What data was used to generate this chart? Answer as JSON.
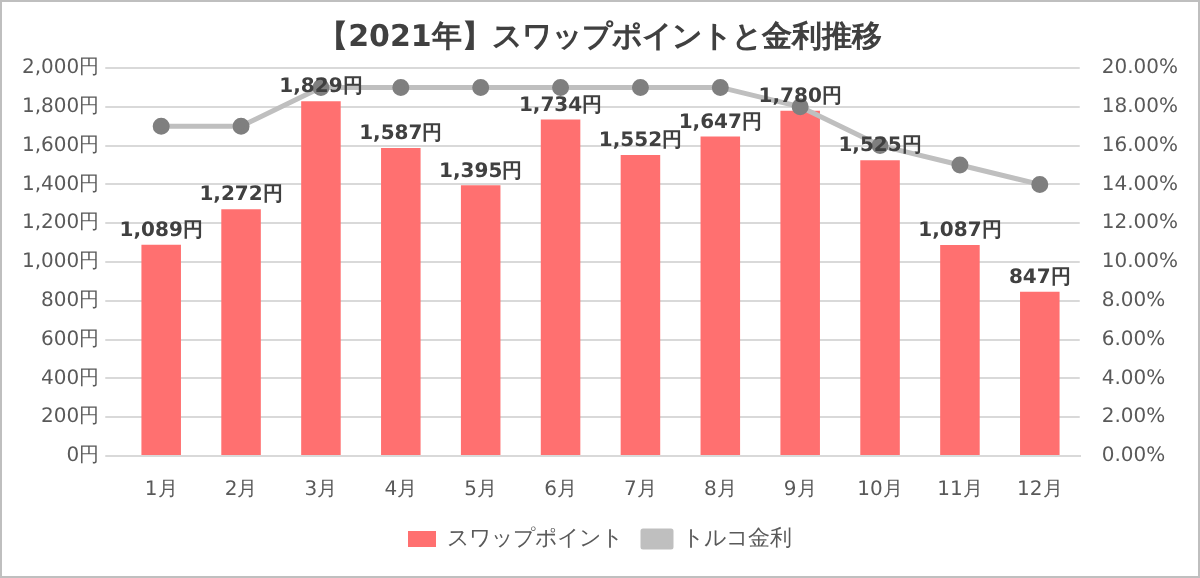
{
  "chart_data": {
    "type": "bar",
    "title": "【2021年】スワップポイントと金利推移",
    "categories": [
      "1月",
      "2月",
      "3月",
      "4月",
      "5月",
      "6月",
      "7月",
      "8月",
      "9月",
      "10月",
      "11月",
      "12月"
    ],
    "series": [
      {
        "name": "スワップポイント",
        "color": "#ff7070",
        "values": [
          1089,
          1272,
          1829,
          1587,
          1395,
          1734,
          1552,
          1647,
          1780,
          1525,
          1087,
          847
        ],
        "value_labels": [
          "1,089円",
          "1,272円",
          "1,829円",
          "1,587円",
          "1,395円",
          "1,734円",
          "1,552円",
          "1,647円",
          "1,780円",
          "1,525円",
          "1,087円",
          "847円"
        ]
      },
      {
        "name": "トルコ金利",
        "type": "line",
        "axis": "y2",
        "color": "#bfbfbf",
        "marker": "circle",
        "values": [
          17,
          17,
          19,
          19,
          19,
          19,
          19,
          19,
          18,
          16,
          15,
          14
        ]
      }
    ],
    "ylim": [
      0,
      2000
    ],
    "yticks": [
      {
        "value": 0,
        "label": "0円"
      },
      {
        "value": 200,
        "label": "200円"
      },
      {
        "value": 400,
        "label": "400円"
      },
      {
        "value": 600,
        "label": "600円"
      },
      {
        "value": 800,
        "label": "800円"
      },
      {
        "value": 1000,
        "label": "1,000円"
      },
      {
        "value": 1200,
        "label": "1,200円"
      },
      {
        "value": 1400,
        "label": "1,400円"
      },
      {
        "value": 1600,
        "label": "1,600円"
      },
      {
        "value": 1800,
        "label": "1,800円"
      },
      {
        "value": 2000,
        "label": "2,000円"
      }
    ],
    "y2lim": [
      0,
      20
    ],
    "y2ticks": [
      {
        "value": 0,
        "label": "0.00%"
      },
      {
        "value": 2,
        "label": "2.00%"
      },
      {
        "value": 4,
        "label": "4.00%"
      },
      {
        "value": 6,
        "label": "6.00%"
      },
      {
        "value": 8,
        "label": "8.00%"
      },
      {
        "value": 10,
        "label": "10.00%"
      },
      {
        "value": 12,
        "label": "12.00%"
      },
      {
        "value": 14,
        "label": "14.00%"
      },
      {
        "value": 16,
        "label": "16.00%"
      },
      {
        "value": 18,
        "label": "18.00%"
      },
      {
        "value": 20,
        "label": "20.00%"
      }
    ],
    "grid": "y",
    "legend": "bottom"
  }
}
